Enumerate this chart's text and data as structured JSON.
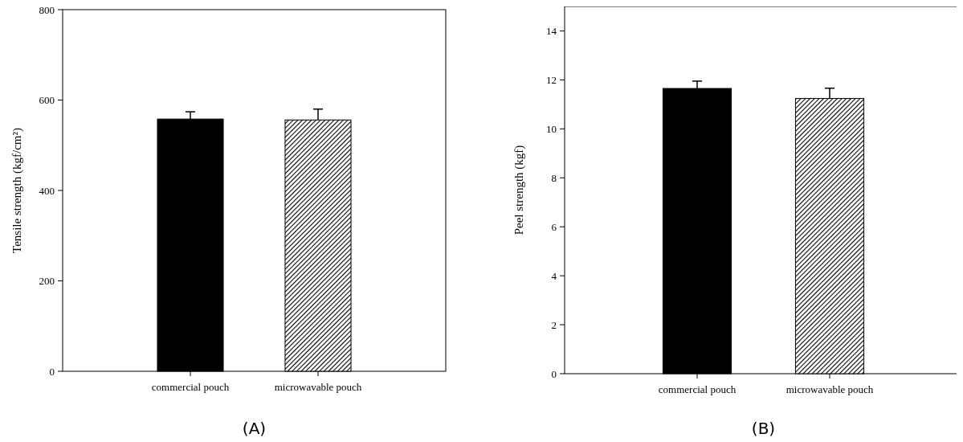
{
  "chart_data": [
    {
      "type": "bar",
      "title": "(A)",
      "ylabel": "Tensile strength (kgf/cm²)",
      "categories": [
        "commercial pouch",
        "microwavable pouch"
      ],
      "values": [
        558,
        556
      ],
      "errors": [
        16,
        24
      ],
      "colors": [
        "#000000",
        "#000000"
      ],
      "ylim": [
        0,
        800
      ],
      "yticks": [
        0,
        200,
        400,
        600,
        800
      ]
    },
    {
      "type": "bar",
      "title": "(B)",
      "ylabel": "Peel strength (kgf)",
      "categories": [
        "commercial pouch",
        "microwavable pouch"
      ],
      "values": [
        11.65,
        11.24
      ],
      "errors": [
        0.3,
        0.42
      ],
      "colors": [
        "#000000",
        "#000000"
      ],
      "ylim": [
        0,
        15
      ],
      "yticks": [
        0,
        2,
        4,
        6,
        8,
        10,
        12,
        14
      ]
    }
  ]
}
